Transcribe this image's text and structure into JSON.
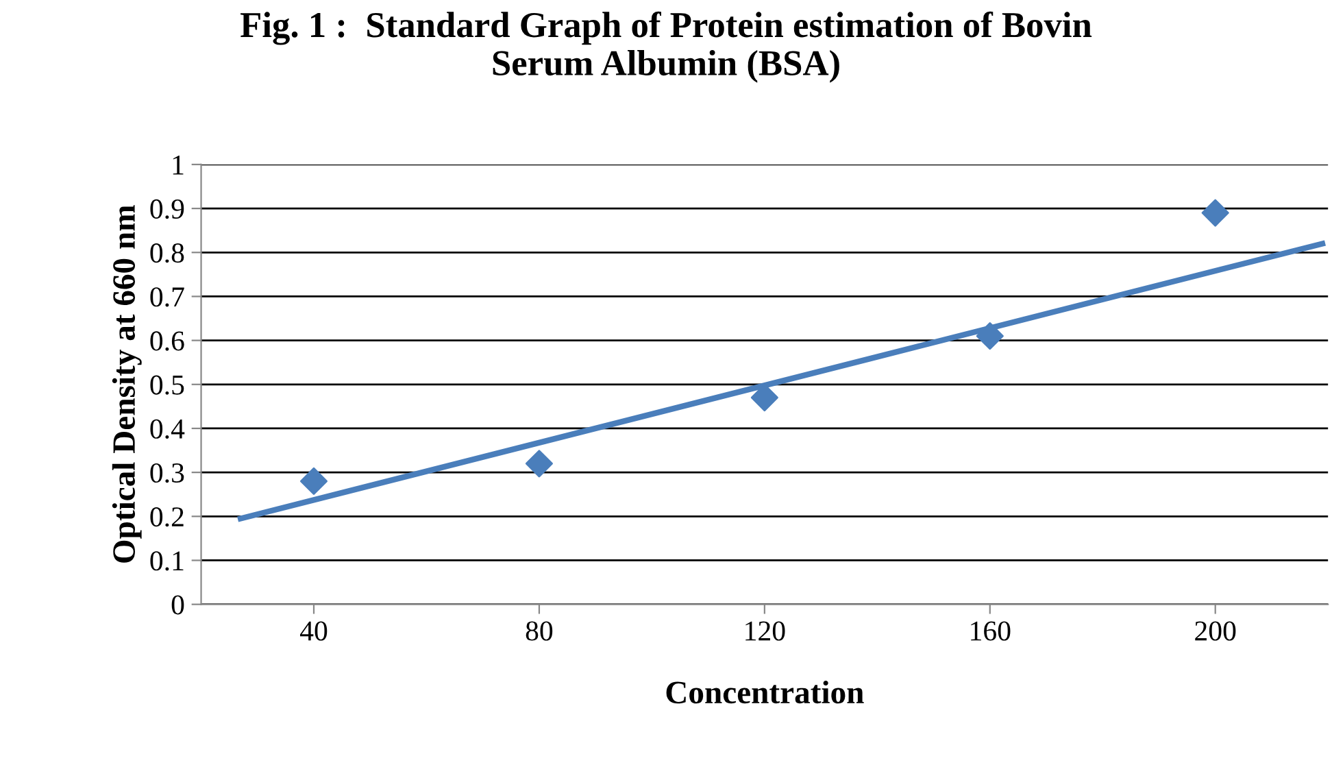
{
  "chart_data": {
    "type": "scatter",
    "title": "Fig. 1 :  Standard Graph of Protein estimation of Bovin\nSerum Albumin (BSA)",
    "xlabel": "Concentration",
    "ylabel": "Optical Density at 660 nm",
    "series": [
      {
        "color": "#4a7ebb",
        "marker": "diamond",
        "x": [
          40,
          80,
          120,
          160,
          200
        ],
        "values": [
          0.28,
          0.32,
          0.47,
          0.61,
          0.89
        ]
      },
      {
        "type": "line",
        "color": "#4a7ebb",
        "marker": "none",
        "line_style": "solid",
        "x": [
          27,
          219
        ],
        "values": [
          0.195,
          0.82
        ]
      }
    ],
    "xlim": [
      20,
      220
    ],
    "xticks": [
      40,
      80,
      120,
      160,
      200
    ],
    "ylim": [
      0,
      1
    ],
    "yticks": [
      0,
      0.1,
      0.2,
      0.3,
      0.4,
      0.5,
      0.6,
      0.7,
      0.8,
      0.9,
      1
    ],
    "grid": "y"
  }
}
